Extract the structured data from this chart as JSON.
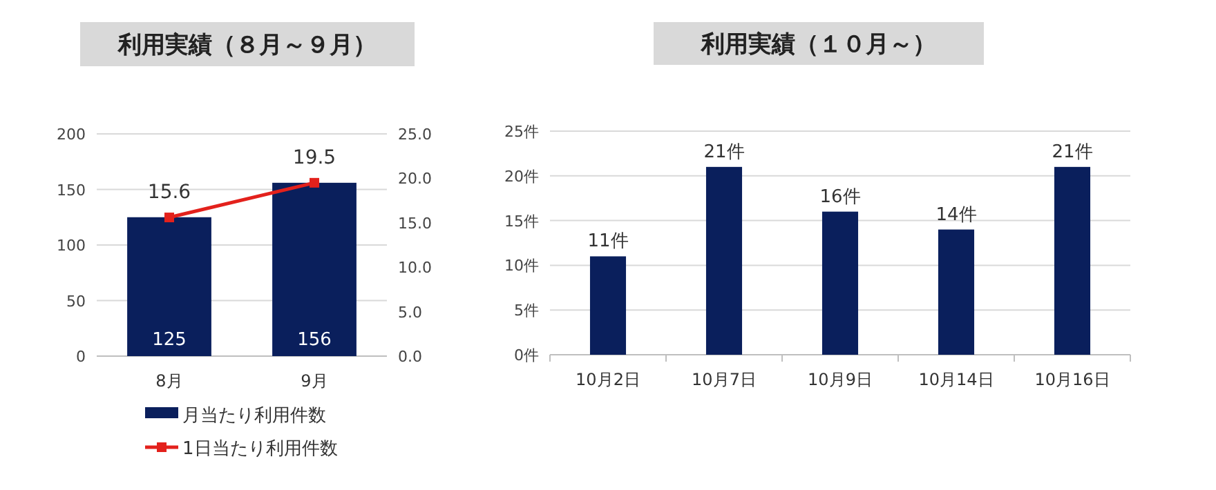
{
  "chart_data": [
    {
      "type": "bar",
      "title": "利用実績（８月～９月）",
      "categories": [
        "8月",
        "9月"
      ],
      "series": [
        {
          "name": "月当たり利用件数",
          "type": "bar",
          "color": "#0a1f5c",
          "values": [
            125,
            156
          ]
        },
        {
          "name": "1日当たり利用件数",
          "type": "line",
          "axis": "y2",
          "color": "#e3211c",
          "values": [
            15.6,
            19.5
          ]
        }
      ],
      "ylim": [
        0,
        200
      ],
      "yticks": [
        0,
        50,
        100,
        150,
        200
      ],
      "y2lim": [
        0,
        25
      ],
      "y2ticks": [
        {
          "value": 0,
          "label": "0.0"
        },
        {
          "value": 5,
          "label": "5.0"
        },
        {
          "value": 10,
          "label": "10.0"
        },
        {
          "value": 15,
          "label": "15.0"
        },
        {
          "value": 20,
          "label": "20.0"
        },
        {
          "value": 25,
          "label": "25.0"
        }
      ],
      "grid": "y",
      "legend": "bottom",
      "marker": "square",
      "data_labels": true
    },
    {
      "type": "bar",
      "title": "利用実績（１０月～）",
      "categories": [
        "10月2日",
        "10月7日",
        "10月9日",
        "10月14日",
        "10月16日"
      ],
      "values": [
        11,
        21,
        16,
        14,
        21
      ],
      "color": "#0a1f5c",
      "value_labels": [
        "11件",
        "21件",
        "16件",
        "14件",
        "21件"
      ],
      "ylim": [
        0,
        25
      ],
      "yticks": [
        {
          "value": 0,
          "label": "0件"
        },
        {
          "value": 5,
          "label": "5件"
        },
        {
          "value": 10,
          "label": "10件"
        },
        {
          "value": 15,
          "label": "15件"
        },
        {
          "value": 20,
          "label": "20件"
        },
        {
          "value": 25,
          "label": "25件"
        }
      ],
      "grid": "y"
    }
  ]
}
